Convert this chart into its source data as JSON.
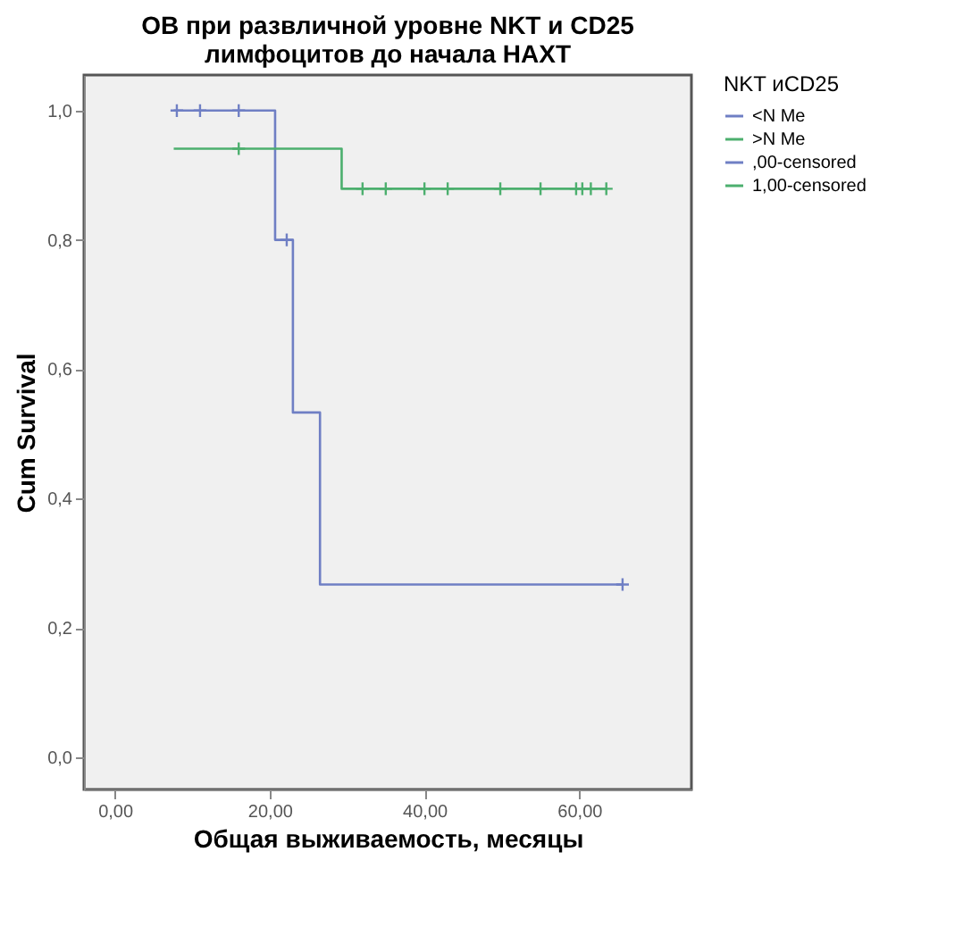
{
  "chart_data": {
    "type": "step",
    "title": "ОВ при развличной уровне NKT и CD25\nлимфоцитов до начала НАХТ",
    "xlabel": "Общая выживаемость, месяцы",
    "ylabel": "Cum Survival",
    "legend_title": "NKT иCD25",
    "legend": "right",
    "grid": false,
    "xlim": [
      -4,
      74.5
    ],
    "ylim": [
      -0.05,
      1.055
    ],
    "xticks": [
      {
        "value": 0,
        "label": "0,00"
      },
      {
        "value": 20,
        "label": "20,00"
      },
      {
        "value": 40,
        "label": "40,00"
      },
      {
        "value": 60,
        "label": "60,00"
      }
    ],
    "yticks": [
      {
        "value": 0,
        "label": "0,0"
      },
      {
        "value": 0.2,
        "label": "0,2"
      },
      {
        "value": 0.4,
        "label": "0,4"
      },
      {
        "value": 0.6,
        "label": "0,6"
      },
      {
        "value": 0.8,
        "label": "0,8"
      },
      {
        "value": 1,
        "label": "1,0"
      }
    ],
    "series": [
      {
        "name": "<N Me",
        "marker": "none",
        "color": "#6f7fc4",
        "x": [
          7.6,
          20.7,
          23,
          26.5,
          65.6
        ],
        "values": [
          1,
          0.8,
          0.533,
          0.267,
          0.267
        ]
      },
      {
        "name": ">N Me",
        "marker": "none",
        "color": "#4caf6e",
        "x": [
          7.6,
          29.3,
          63.5
        ],
        "values": [
          0.941,
          0.879,
          0.879
        ]
      },
      {
        "name": ",00-censored",
        "type": "scatter",
        "marker": "cross",
        "color": "#6f7fc4",
        "x": [
          8,
          11,
          16,
          22.2,
          65.6
        ],
        "values": [
          1,
          1,
          1,
          0.8,
          0.267
        ]
      },
      {
        "name": "1,00-censored",
        "type": "scatter",
        "marker": "cross",
        "color": "#4caf6e",
        "x": [
          16,
          32,
          35,
          40,
          43,
          49.8,
          55,
          59.6,
          60.4,
          61.5,
          63.5
        ],
        "values": [
          0.941,
          0.879,
          0.879,
          0.879,
          0.879,
          0.879,
          0.879,
          0.879,
          0.879,
          0.879,
          0.879
        ]
      }
    ]
  }
}
